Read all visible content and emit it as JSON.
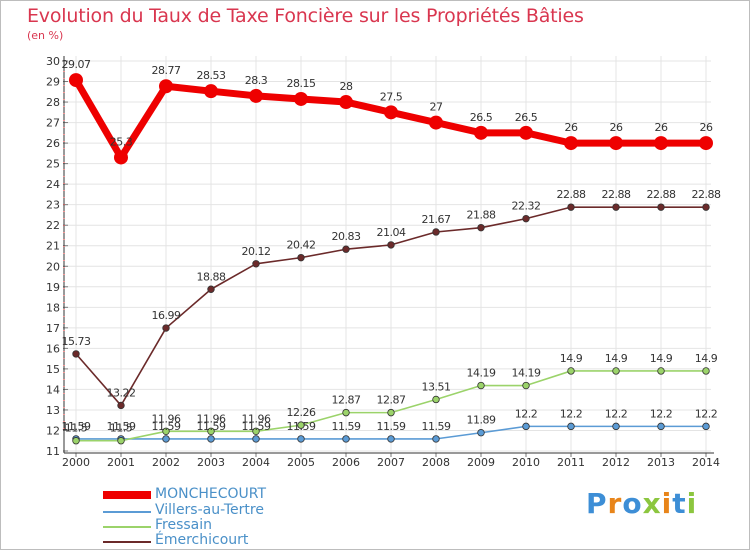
{
  "chart_data": {
    "type": "line",
    "title": "Evolution du Taux de Taxe Foncière sur les Propriétés Bâties",
    "unit_label": "(en %)",
    "categories": [
      "2000",
      "2001",
      "2002",
      "2003",
      "2004",
      "2005",
      "2006",
      "2007",
      "2008",
      "2009",
      "2010",
      "2011",
      "2012",
      "2013",
      "2014"
    ],
    "ylim": [
      11,
      30
    ],
    "yticks": [
      "11",
      "12",
      "13",
      "14",
      "15",
      "16",
      "17",
      "18",
      "19",
      "20",
      "21",
      "22",
      "23",
      "24",
      "25",
      "26",
      "27",
      "28",
      "29",
      "30"
    ],
    "series": [
      {
        "name": "MONCHECOURT",
        "color": "#ee0000",
        "values": [
          29.07,
          25.3,
          28.77,
          28.53,
          28.3,
          28.15,
          28,
          27.5,
          27,
          26.5,
          26.5,
          26,
          26,
          26,
          26
        ],
        "labels": [
          "29.07",
          "25.3",
          "28.77",
          "28.53",
          "28.3",
          "28.15",
          "28",
          "27.5",
          "27",
          "26.5",
          "26.5",
          "26",
          "26",
          "26",
          "26"
        ]
      },
      {
        "name": "Villers-au-Tertre",
        "color": "#5b9bd5",
        "values": [
          11.59,
          11.59,
          11.59,
          11.59,
          11.59,
          11.59,
          11.59,
          11.59,
          11.59,
          11.89,
          12.2,
          12.2,
          12.2,
          12.2,
          12.2
        ],
        "labels": [
          "11.59",
          "11.59",
          "11.59",
          "11.59",
          "11.59",
          "11.59",
          "11.59",
          "11.59",
          "11.59",
          "11.89",
          "12.2",
          "12.2",
          "12.2",
          "12.2",
          "12.2"
        ]
      },
      {
        "name": "Fressain",
        "color": "#9bd36a",
        "values": [
          11.5,
          11.5,
          11.96,
          11.96,
          11.96,
          12.26,
          12.87,
          12.87,
          13.51,
          14.19,
          14.19,
          14.9,
          14.9,
          14.9,
          14.9
        ],
        "labels": [
          "11.5",
          "11.5",
          "11.96",
          "11.96",
          "11.96",
          "12.26",
          "12.87",
          "12.87",
          "13.51",
          "14.19",
          "14.19",
          "14.9",
          "14.9",
          "14.9",
          "14.9"
        ]
      },
      {
        "name": "Émerchicourt",
        "color": "#6b2a2a",
        "values": [
          15.73,
          13.22,
          16.99,
          18.88,
          20.12,
          20.42,
          20.83,
          21.04,
          21.67,
          21.88,
          22.32,
          22.88,
          22.88,
          22.88,
          22.88
        ],
        "labels": [
          "15.73",
          "13.22",
          "16.99",
          "18.88",
          "20.12",
          "20.42",
          "20.83",
          "21.04",
          "21.67",
          "21.88",
          "22.32",
          "22.88",
          "22.88",
          "22.88",
          "22.88"
        ]
      }
    ]
  },
  "legend": {
    "items": [
      {
        "label": "MONCHECOURT",
        "color": "#ee0000"
      },
      {
        "label": "Villers-au-Tertre",
        "color": "#5b9bd5"
      },
      {
        "label": "Fressain",
        "color": "#9bd36a"
      },
      {
        "label": "Émerchicourt",
        "color": "#6b2a2a"
      }
    ]
  },
  "brand": {
    "text": "Proxiti"
  }
}
